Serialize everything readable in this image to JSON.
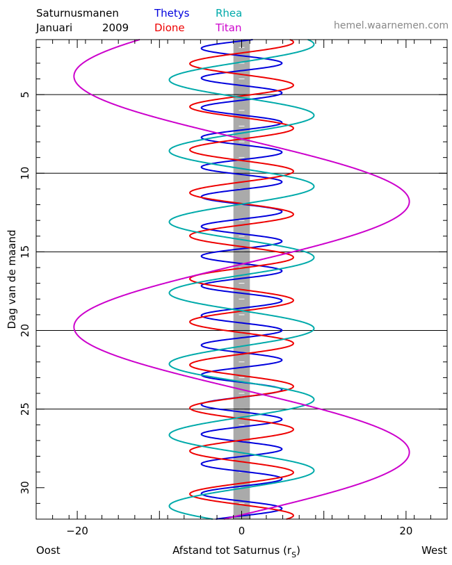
{
  "header": {
    "title_line1": "Saturnusmanen",
    "title_line2": "Januari",
    "year": "2009",
    "source": "hemel.waarnemen.com"
  },
  "footer": {
    "left": "Oost",
    "right": "West"
  },
  "chart_data": {
    "type": "line",
    "xlabel": "Afstand tot Saturnus (rS)",
    "xlabel_main": "Afstand tot Saturnus (r",
    "xlabel_sub": "S",
    "xlabel_close": ")",
    "ylabel": "Dag van de maand",
    "xlim": [
      -25,
      25
    ],
    "ylim": [
      32,
      1.5
    ],
    "x_ticks": [
      -20,
      0,
      20
    ],
    "x_tick_labels": [
      "−20",
      "0",
      "20"
    ],
    "y_ticks": [
      5,
      10,
      15,
      20,
      25,
      30
    ],
    "y_tick_labels": [
      "5",
      "10",
      "15",
      "20",
      "25",
      "30"
    ],
    "grid": "horizontal lines at days 5, 10, 15, 20, 25",
    "series": [
      {
        "name": "Thetys",
        "color": "#0000dd",
        "amplitude": 4.9,
        "period_days": 1.888,
        "peak_day": 3.0
      },
      {
        "name": "Dione",
        "color": "#ee0000",
        "amplitude": 6.3,
        "period_days": 2.737,
        "peak_day": 4.4
      },
      {
        "name": "Rhea",
        "color": "#00aaaa",
        "amplitude": 8.8,
        "period_days": 4.518,
        "peak_day": 1.8
      },
      {
        "name": "Titan",
        "color": "#cc00cc",
        "amplitude": 20.4,
        "period_days": 15.945,
        "peak_day": 11.8
      }
    ],
    "planet_band": {
      "label": "Saturnus",
      "width_rs": 2,
      "color": "#aaaaaa"
    }
  }
}
